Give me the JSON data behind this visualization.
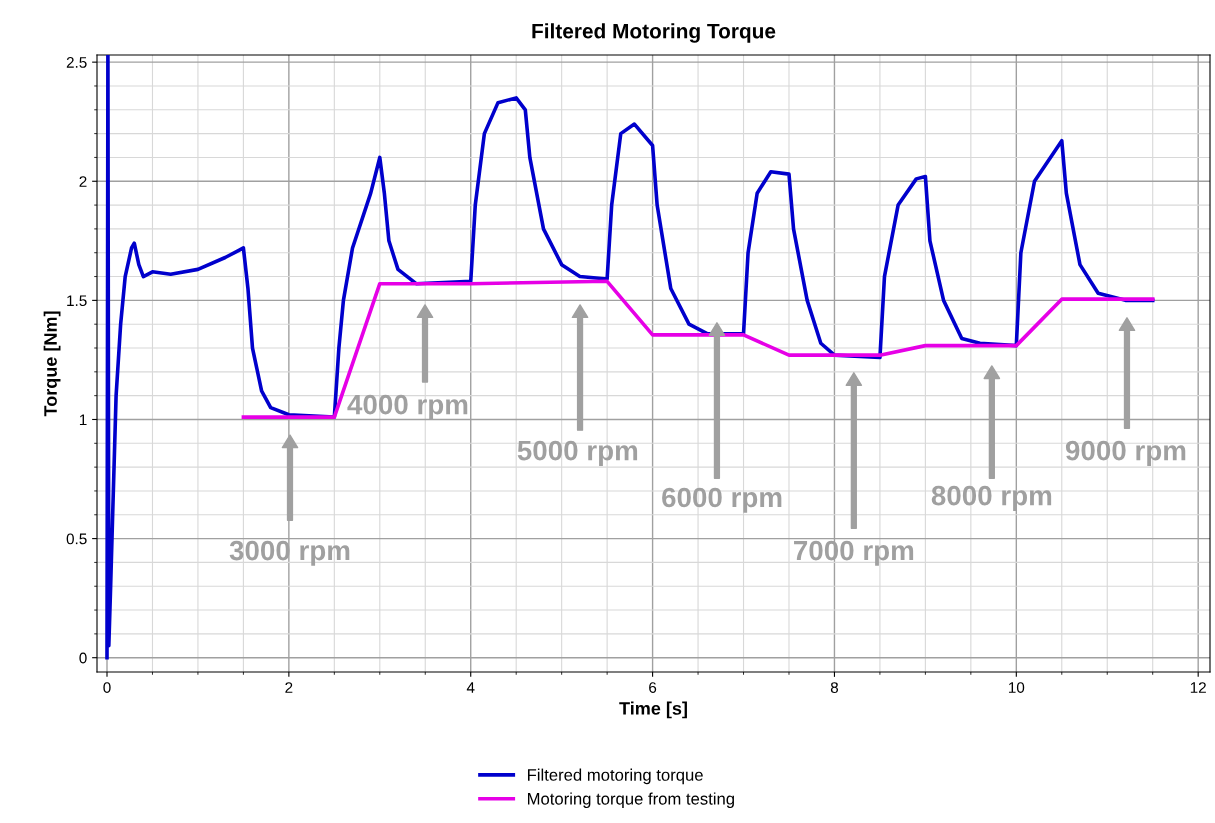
{
  "chart_data": {
    "type": "line",
    "title": "Filtered Motoring Torque",
    "xlabel": "Time [s]",
    "ylabel": "Torque [Nm]",
    "xlim": [
      -0.11,
      12.13
    ],
    "ylim": [
      -0.06,
      2.53
    ],
    "xticks": [
      0,
      2,
      4,
      6,
      8,
      10,
      12
    ],
    "yticks": [
      0,
      0.5,
      1,
      1.5,
      2,
      2.5
    ],
    "grid": true,
    "legend": "bottom",
    "marker": "none",
    "line_style": "solid",
    "series": [
      {
        "name": "Filtered motoring torque",
        "color": "#0000cc",
        "x": [
          0,
          0.01,
          0.02,
          0.04,
          0.06,
          0.1,
          0.15,
          0.2,
          0.27,
          0.3,
          0.35,
          0.4,
          0.5,
          0.7,
          1.0,
          1.3,
          1.45,
          1.5,
          1.55,
          1.6,
          1.7,
          1.8,
          2.0,
          2.5,
          2.55,
          2.6,
          2.7,
          2.9,
          3.0,
          3.05,
          3.1,
          3.2,
          3.4,
          4.0,
          4.05,
          4.15,
          4.3,
          4.5,
          4.6,
          4.65,
          4.8,
          5.0,
          5.2,
          5.5,
          5.55,
          5.65,
          5.8,
          6.0,
          6.05,
          6.2,
          6.4,
          6.6,
          7.0,
          7.05,
          7.15,
          7.3,
          7.5,
          7.55,
          7.7,
          7.85,
          8.0,
          8.5,
          8.55,
          8.7,
          8.9,
          9.0,
          9.05,
          9.2,
          9.4,
          9.6,
          10.0,
          10.05,
          10.2,
          10.5,
          10.55,
          10.7,
          10.9,
          11.2,
          11.5
        ],
        "values": [
          0,
          2.53,
          0.05,
          0.3,
          0.57,
          1.1,
          1.4,
          1.6,
          1.72,
          1.74,
          1.65,
          1.6,
          1.62,
          1.61,
          1.63,
          1.68,
          1.71,
          1.72,
          1.55,
          1.3,
          1.12,
          1.05,
          1.02,
          1.01,
          1.3,
          1.5,
          1.72,
          1.95,
          2.1,
          1.95,
          1.75,
          1.63,
          1.57,
          1.58,
          1.9,
          2.2,
          2.33,
          2.35,
          2.3,
          2.1,
          1.8,
          1.65,
          1.6,
          1.59,
          1.9,
          2.2,
          2.24,
          2.15,
          1.9,
          1.55,
          1.4,
          1.36,
          1.36,
          1.7,
          1.95,
          2.04,
          2.03,
          1.8,
          1.5,
          1.32,
          1.27,
          1.26,
          1.6,
          1.9,
          2.01,
          2.02,
          1.75,
          1.5,
          1.34,
          1.32,
          1.31,
          1.7,
          2.0,
          2.17,
          1.95,
          1.65,
          1.53,
          1.5,
          1.5
        ]
      },
      {
        "name": "Motoring torque from testing",
        "color": "#e600e6",
        "x": [
          1.5,
          2.5,
          3.0,
          4.0,
          5.5,
          6.0,
          7.0,
          7.5,
          8.5,
          9.0,
          10.0,
          10.5,
          11.5
        ],
        "values": [
          1.01,
          1.01,
          1.57,
          1.57,
          1.58,
          1.355,
          1.355,
          1.27,
          1.27,
          1.31,
          1.31,
          1.505,
          1.505
        ]
      }
    ],
    "annotations": [
      "3000 rpm",
      "4000 rpm",
      "5000 rpm",
      "6000 rpm",
      "7000 rpm",
      "8000 rpm",
      "9000 rpm"
    ]
  }
}
